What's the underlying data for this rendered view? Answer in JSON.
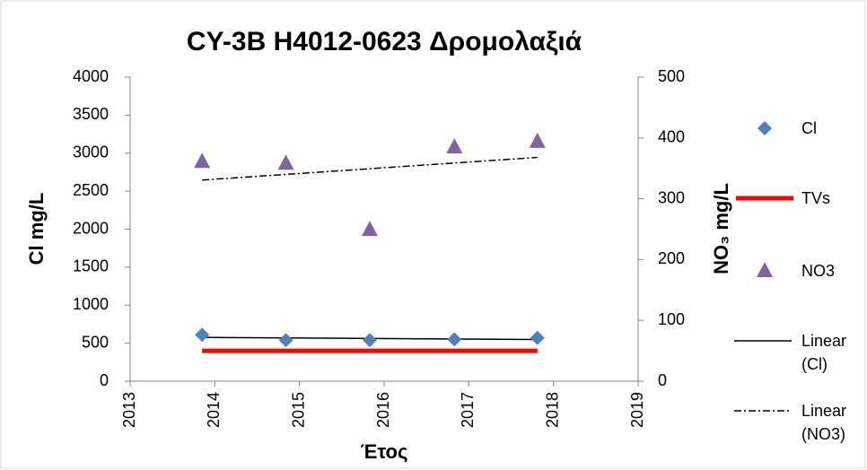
{
  "chart_data": {
    "type": "scatter",
    "title": "CY-3B H4012-0623 Δρομολαξιά",
    "x_label": "Έτος",
    "y_label": "Cl mg/L",
    "y2_label": "NO₃ mg/L",
    "xlim": [
      2013,
      2019
    ],
    "xticks": [
      2013,
      2014,
      2015,
      2016,
      2017,
      2018,
      2019
    ],
    "ylim": [
      0,
      4000
    ],
    "yticks": [
      0,
      500,
      1000,
      1500,
      2000,
      2500,
      3000,
      3500,
      4000
    ],
    "y2lim": [
      0,
      500
    ],
    "y2ticks": [
      0,
      100,
      200,
      300,
      400,
      500
    ],
    "grid": false,
    "legend": "right",
    "series": [
      {
        "name": "Cl",
        "color": "#4f81bd",
        "marker": "diamond",
        "x": [
          2013.85,
          2014.84,
          2015.83,
          2016.83,
          2017.81
        ],
        "values": [
          610,
          540,
          540,
          550,
          570
        ]
      },
      {
        "name": "TVs",
        "color": "#ff0000",
        "marker": "line",
        "x": [
          2013.85,
          2017.81
        ],
        "values": [
          400,
          400
        ]
      },
      {
        "name": "NO3",
        "color": "#8064a2",
        "marker": "triangle",
        "axis": "y2",
        "x": [
          2013.85,
          2014.84,
          2015.83,
          2016.83,
          2017.81
        ],
        "values": [
          361,
          358,
          249,
          385,
          394
        ]
      }
    ],
    "trendlines": [
      {
        "name": "Linear (Cl)",
        "series": "Cl",
        "style": "solid",
        "color": "#000000"
      },
      {
        "name": "Linear (NO3)",
        "series": "NO3",
        "style": "dashdot",
        "color": "#000000"
      }
    ]
  }
}
